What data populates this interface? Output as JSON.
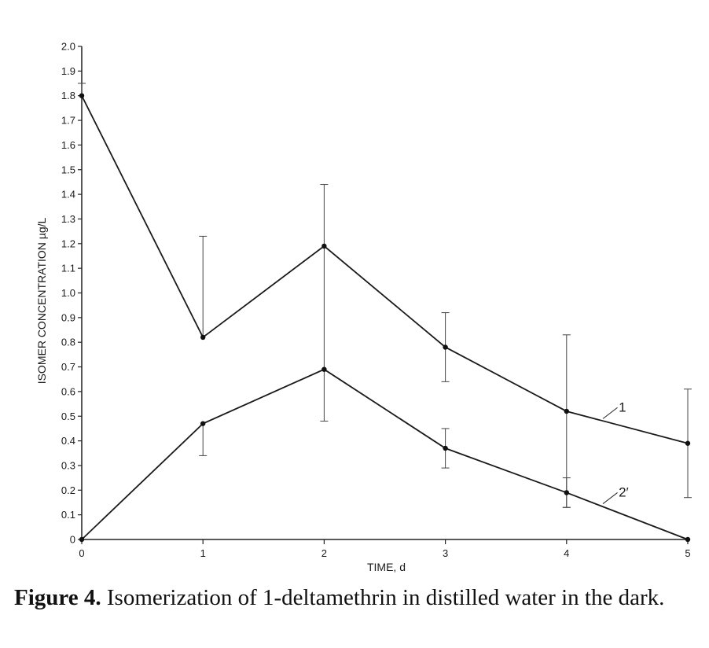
{
  "chart_data": {
    "type": "line",
    "title": "",
    "xlabel": "TIME, d",
    "ylabel": "ISOMER CONCENTRATION µg/L",
    "x": [
      0,
      1,
      2,
      3,
      4,
      5
    ],
    "xlim": [
      0,
      5
    ],
    "ylim": [
      0,
      2.0
    ],
    "x_ticks": [
      "0",
      "1",
      "2",
      "3",
      "4",
      "5"
    ],
    "y_ticks": [
      "0",
      "0.1",
      "0.2",
      "0.3",
      "0.4",
      "0.5",
      "0.6",
      "0.7",
      "0.8",
      "0.9",
      "1.0",
      "1.1",
      "1.2",
      "1.3",
      "1.4",
      "1.5",
      "1.6",
      "1.7",
      "1.8",
      "1.9",
      "2.0"
    ],
    "grid": false,
    "series": [
      {
        "name": "1",
        "label": "1",
        "values": [
          1.8,
          0.82,
          1.19,
          0.78,
          0.52,
          0.39
        ],
        "err_low": [
          null,
          null,
          0.48,
          0.64,
          0.13,
          0.17
        ],
        "err_high": [
          1.85,
          1.23,
          1.44,
          0.92,
          0.83,
          0.61
        ]
      },
      {
        "name": "2'",
        "label": "2′",
        "values": [
          0.0,
          0.47,
          0.69,
          0.37,
          0.19,
          0.0
        ],
        "err_low": [
          null,
          0.34,
          null,
          0.29,
          0.13,
          null
        ],
        "err_high": [
          null,
          null,
          null,
          0.45,
          0.25,
          null
        ]
      }
    ]
  },
  "caption": {
    "figure_label": "Figure 4.",
    "text": "Isomerization of 1-deltamethrin in distilled water in the dark."
  }
}
